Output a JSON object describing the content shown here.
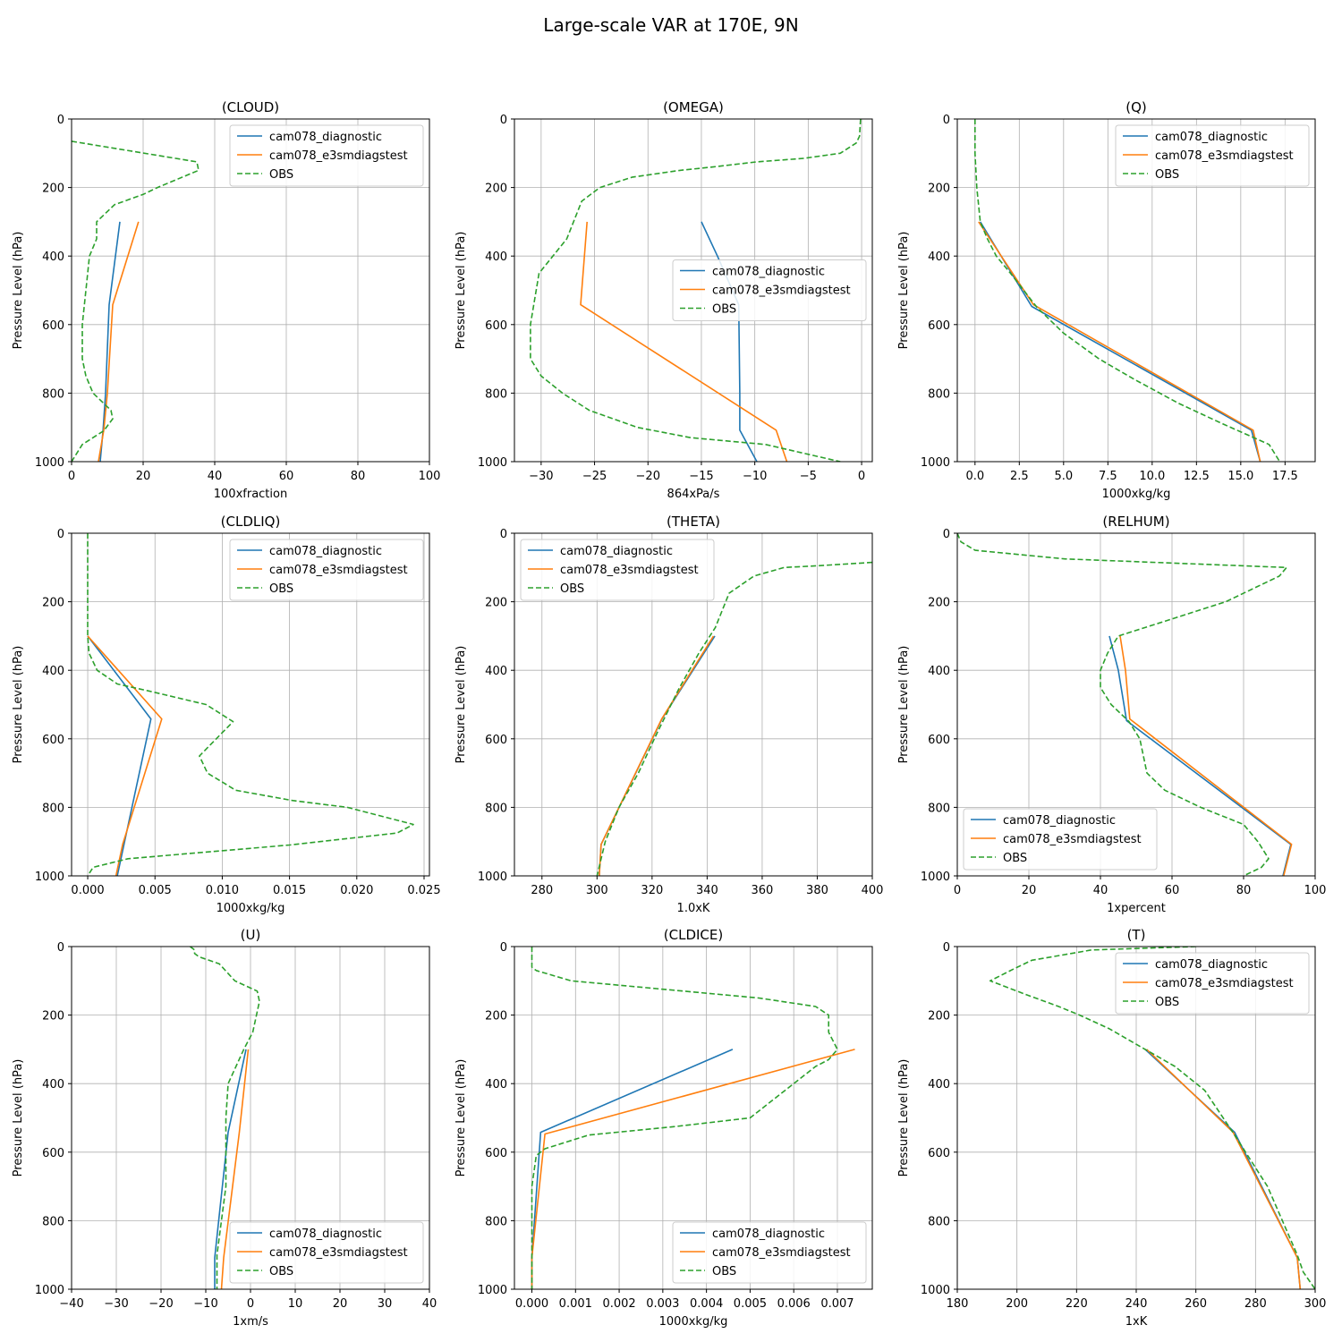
{
  "figure": {
    "title": "Large-scale VAR at 170E, 9N"
  },
  "styles": {
    "cam078_diagnostic": {
      "color": "#1f77b4",
      "dash": ""
    },
    "cam078_e3smdiagstest": {
      "color": "#ff7f0e",
      "dash": ""
    },
    "OBS": {
      "color": "#2ca02c",
      "dash": "6,3"
    }
  },
  "chart_data": [
    {
      "type": "line",
      "title": "(CLOUD)",
      "xlabel": "100xfraction",
      "ylabel": "Pressure Level (hPa)",
      "xlim": [
        0,
        100
      ],
      "ylim": [
        1000,
        0
      ],
      "xticks": [
        0,
        20,
        40,
        60,
        80,
        100
      ],
      "xticklabels": [
        "0",
        "20",
        "40",
        "60",
        "80",
        "100"
      ],
      "yticks": [
        0,
        200,
        400,
        600,
        800,
        1000
      ],
      "yticklabels": [
        "0",
        "200",
        "400",
        "600",
        "800",
        "1000"
      ],
      "grid": true,
      "legend": "upper right",
      "series": [
        {
          "name": "cam078_diagnostic",
          "x": [
            13.5,
            10.5,
            9.5,
            8.8,
            8.0
          ],
          "y": [
            300,
            542,
            800,
            908,
            1000
          ]
        },
        {
          "name": "cam078_e3smdiagstest",
          "x": [
            18.7,
            11.5,
            10,
            9,
            7.5
          ],
          "y": [
            300,
            542,
            800,
            908,
            1000
          ]
        },
        {
          "name": "OBS",
          "x": [
            0,
            35,
            35.5,
            24,
            20,
            12,
            7,
            7,
            5,
            4.5,
            3,
            3,
            4,
            6,
            11,
            11.5,
            9,
            3,
            0
          ],
          "y": [
            65,
            125,
            150,
            200,
            220,
            250,
            300,
            350,
            400,
            450,
            600,
            700,
            750,
            800,
            850,
            875,
            910,
            950,
            1000
          ]
        }
      ]
    },
    {
      "type": "line",
      "title": "(OMEGA)",
      "xlabel": "864xPa/s",
      "ylabel": "Pressure Level (hPa)",
      "xlim": [
        -32.5,
        1.0
      ],
      "ylim": [
        1000,
        0
      ],
      "xticks": [
        -30,
        -25,
        -20,
        -15,
        -10,
        -5,
        0
      ],
      "xticklabels": [
        "−30",
        "−25",
        "−20",
        "−15",
        "−10",
        "−5",
        "0"
      ],
      "yticks": [
        0,
        200,
        400,
        600,
        800,
        1000
      ],
      "yticklabels": [
        "0",
        "200",
        "400",
        "600",
        "800",
        "1000"
      ],
      "grid": true,
      "legend": "center right",
      "series": [
        {
          "name": "cam078_diagnostic",
          "x": [
            -15,
            -13.5,
            -11.5,
            -11.4,
            -11.4,
            -9.8
          ],
          "y": [
            300,
            400,
            542,
            800,
            908,
            1000
          ]
        },
        {
          "name": "cam078_e3smdiagstest",
          "x": [
            -25.7,
            -26.3,
            -8,
            -7
          ],
          "y": [
            300,
            542,
            908,
            1000
          ]
        },
        {
          "name": "OBS",
          "x": [
            -0.1,
            -0.2,
            -0.5,
            -2,
            -5.4,
            -9.8,
            -13.9,
            -17,
            -21.5,
            -24.5,
            -26.2,
            -27.6,
            -30.2,
            -31,
            -31,
            -30,
            -28,
            -25.5,
            -21,
            -16,
            -9,
            -2
          ],
          "y": [
            0,
            50,
            70,
            100,
            115,
            125,
            140,
            150,
            170,
            200,
            240,
            350,
            450,
            600,
            700,
            750,
            800,
            850,
            900,
            930,
            950,
            1000
          ]
        }
      ]
    },
    {
      "type": "line",
      "title": "(Q)",
      "xlabel": "1000xkg/kg",
      "ylabel": "Pressure Level (hPa)",
      "xlim": [
        -1.0,
        19.2
      ],
      "ylim": [
        1000,
        0
      ],
      "xticks": [
        0,
        2.5,
        5,
        7.5,
        10,
        12.5,
        15,
        17.5
      ],
      "xticklabels": [
        "0.0",
        "2.5",
        "5.0",
        "7.5",
        "10.0",
        "12.5",
        "15.0",
        "17.5"
      ],
      "yticks": [
        0,
        200,
        400,
        600,
        800,
        1000
      ],
      "yticklabels": [
        "0",
        "200",
        "400",
        "600",
        "800",
        "1000"
      ],
      "grid": true,
      "legend": "upper right",
      "series": [
        {
          "name": "cam078_diagnostic",
          "x": [
            0.3,
            3.2,
            15.6,
            16.1
          ],
          "y": [
            300,
            547,
            908,
            1000
          ]
        },
        {
          "name": "cam078_e3smdiagstest",
          "x": [
            0.2,
            3.3,
            15.7,
            16.1
          ],
          "y": [
            300,
            542,
            908,
            1000
          ]
        },
        {
          "name": "OBS",
          "x": [
            0.0,
            0.0,
            0.1,
            0.3,
            0.7,
            1.2,
            2.0,
            3.5,
            5.0,
            7.0,
            9.0,
            11.5,
            14.0,
            16.6,
            17.2
          ],
          "y": [
            0,
            100,
            200,
            300,
            350,
            400,
            450,
            550,
            625,
            700,
            760,
            830,
            890,
            950,
            1000
          ]
        }
      ]
    },
    {
      "type": "line",
      "title": "(CLDLIQ)",
      "xlabel": "1000xkg/kg",
      "ylabel": "Pressure Level (hPa)",
      "xlim": [
        -0.0012,
        0.0254
      ],
      "ylim": [
        1000,
        0
      ],
      "xticks": [
        0,
        0.005,
        0.01,
        0.015,
        0.02,
        0.025
      ],
      "xticklabels": [
        "0.000",
        "0.005",
        "0.010",
        "0.015",
        "0.020",
        "0.025"
      ],
      "yticks": [
        0,
        200,
        400,
        600,
        800,
        1000
      ],
      "yticklabels": [
        "0",
        "200",
        "400",
        "600",
        "800",
        "1000"
      ],
      "grid": true,
      "legend": "upper right",
      "series": [
        {
          "name": "cam078_diagnostic",
          "x": [
            0.0,
            0.0047,
            0.0027,
            0.0022
          ],
          "y": [
            300,
            542,
            908,
            1000
          ]
        },
        {
          "name": "cam078_e3smdiagstest",
          "x": [
            0.0,
            0.0055,
            0.0026,
            0.0021
          ],
          "y": [
            300,
            542,
            908,
            1000
          ]
        },
        {
          "name": "OBS",
          "x": [
            0.0,
            0.0,
            0.0,
            0.0001,
            0.0007,
            0.0022,
            0.0045,
            0.0088,
            0.0108,
            0.0083,
            0.0089,
            0.011,
            0.0152,
            0.0193,
            0.0242,
            0.023,
            0.015,
            0.003,
            0.0004,
            0.0
          ],
          "y": [
            0,
            200,
            300,
            350,
            400,
            440,
            460,
            500,
            550,
            650,
            700,
            750,
            780,
            800,
            850,
            875,
            910,
            950,
            975,
            1000
          ]
        }
      ]
    },
    {
      "type": "line",
      "title": "(THETA)",
      "xlabel": "1.0xK",
      "ylabel": "Pressure Level (hPa)",
      "xlim": [
        270,
        400
      ],
      "ylim": [
        1000,
        0
      ],
      "xticks": [
        280,
        300,
        320,
        340,
        360,
        380,
        400
      ],
      "xticklabels": [
        "280",
        "300",
        "320",
        "340",
        "360",
        "380",
        "400"
      ],
      "yticks": [
        0,
        200,
        400,
        600,
        800,
        1000
      ],
      "yticklabels": [
        "0",
        "200",
        "400",
        "600",
        "800",
        "1000"
      ],
      "grid": true,
      "legend": "upper left",
      "series": [
        {
          "name": "cam078_diagnostic",
          "x": [
            342.8,
            323.6,
            301.5,
            300.8
          ],
          "y": [
            300,
            542,
            908,
            1000
          ]
        },
        {
          "name": "cam078_e3smdiagstest",
          "x": [
            342.3,
            323.5,
            301.5,
            300.8
          ],
          "y": [
            300,
            542,
            908,
            1000
          ]
        },
        {
          "name": "OBS",
          "x": [
            400,
            380,
            368,
            357,
            348,
            343,
            337,
            330,
            322,
            315,
            308,
            303,
            300
          ],
          "y": [
            85,
            95,
            100,
            125,
            175,
            275,
            350,
            450,
            580,
            700,
            800,
            900,
            1000
          ]
        }
      ]
    },
    {
      "type": "line",
      "title": "(RELHUM)",
      "xlabel": "1xpercent",
      "ylabel": "Pressure Level (hPa)",
      "xlim": [
        0,
        100
      ],
      "ylim": [
        1000,
        0
      ],
      "xticks": [
        0,
        20,
        40,
        60,
        80,
        100
      ],
      "xticklabels": [
        "0",
        "20",
        "40",
        "60",
        "80",
        "100"
      ],
      "yticks": [
        0,
        200,
        400,
        600,
        800,
        1000
      ],
      "yticklabels": [
        "0",
        "200",
        "400",
        "600",
        "800",
        "1000"
      ],
      "grid": true,
      "legend": "lower left",
      "series": [
        {
          "name": "cam078_diagnostic",
          "x": [
            42.5,
            45,
            47.3,
            93.2,
            91
          ],
          "y": [
            300,
            400,
            547,
            908,
            1000
          ]
        },
        {
          "name": "cam078_e3smdiagstest",
          "x": [
            45.5,
            47,
            48.2,
            93.4,
            91.2
          ],
          "y": [
            300,
            400,
            542,
            908,
            1000
          ]
        },
        {
          "name": "OBS",
          "x": [
            0,
            1,
            5,
            30,
            92,
            90,
            75,
            60,
            45,
            42,
            40,
            40,
            43,
            48,
            51,
            53,
            58,
            68,
            80,
            84,
            87,
            85,
            80
          ],
          "y": [
            0,
            25,
            50,
            75,
            100,
            125,
            200,
            250,
            300,
            350,
            400,
            450,
            500,
            550,
            600,
            700,
            750,
            800,
            850,
            900,
            950,
            975,
            1000
          ]
        }
      ]
    },
    {
      "type": "line",
      "title": "(U)",
      "xlabel": "1xm/s",
      "ylabel": "Pressure Level (hPa)",
      "xlim": [
        -40,
        40
      ],
      "ylim": [
        1000,
        0
      ],
      "xticks": [
        -40,
        -30,
        -20,
        -10,
        0,
        10,
        20,
        30,
        40
      ],
      "xticklabels": [
        "−40",
        "−30",
        "−20",
        "−10",
        "0",
        "10",
        "20",
        "30",
        "40"
      ],
      "yticks": [
        0,
        200,
        400,
        600,
        800,
        1000
      ],
      "yticklabels": [
        "0",
        "200",
        "400",
        "600",
        "800",
        "1000"
      ],
      "grid": true,
      "legend": "lower right",
      "series": [
        {
          "name": "cam078_diagnostic",
          "x": [
            -1,
            -5,
            -8,
            -8
          ],
          "y": [
            300,
            542,
            908,
            1000
          ]
        },
        {
          "name": "cam078_e3smdiagstest",
          "x": [
            -0.5,
            -2.5,
            -6,
            -6.5
          ],
          "y": [
            300,
            542,
            908,
            1000
          ]
        },
        {
          "name": "OBS",
          "x": [
            -13.5,
            -12.5,
            -12.5,
            -11.5,
            -7,
            -3.5,
            1.5,
            2,
            0.5,
            -1.5,
            -5,
            -5.5,
            -5.5,
            -6.5,
            -7.5,
            -7.5
          ],
          "y": [
            0,
            10,
            20,
            30,
            50,
            100,
            130,
            160,
            250,
            300,
            400,
            500,
            700,
            800,
            900,
            1000
          ]
        }
      ]
    },
    {
      "type": "line",
      "title": "(CLDICE)",
      "xlabel": "1000xkg/kg",
      "ylabel": "Pressure Level (hPa)",
      "xlim": [
        -0.0004,
        0.0078
      ],
      "ylim": [
        1000,
        0
      ],
      "xticks": [
        0,
        0.001,
        0.002,
        0.003,
        0.004,
        0.005,
        0.006,
        0.007
      ],
      "xticklabels": [
        "0.000",
        "0.001",
        "0.002",
        "0.003",
        "0.004",
        "0.005",
        "0.006",
        "0.007"
      ],
      "yticks": [
        0,
        200,
        400,
        600,
        800,
        1000
      ],
      "yticklabels": [
        "0",
        "200",
        "400",
        "600",
        "800",
        "1000"
      ],
      "grid": true,
      "legend": "lower right",
      "series": [
        {
          "name": "cam078_diagnostic",
          "x": [
            0.0046,
            0.0002,
            0.0,
            0.0
          ],
          "y": [
            300,
            542,
            908,
            1000
          ]
        },
        {
          "name": "cam078_e3smdiagstest",
          "x": [
            0.0074,
            0.0003,
            0.0,
            0.0
          ],
          "y": [
            300,
            547,
            908,
            1000
          ]
        },
        {
          "name": "OBS",
          "x": [
            0.0,
            0.0,
            0.0001,
            0.0009,
            0.0052,
            0.0065,
            0.0068,
            0.0068,
            0.007,
            0.0068,
            0.0065,
            0.006,
            0.0055,
            0.005,
            0.0033,
            0.0013,
            0.0003,
            0.0001,
            0.0,
            0.0
          ],
          "y": [
            0,
            60,
            70,
            100,
            150,
            175,
            200,
            250,
            300,
            330,
            350,
            400,
            450,
            500,
            525,
            550,
            590,
            610,
            700,
            1000
          ]
        }
      ]
    },
    {
      "type": "line",
      "title": "(T)",
      "xlabel": "1xK",
      "ylabel": "Pressure Level (hPa)",
      "xlim": [
        180,
        300
      ],
      "ylim": [
        1000,
        0
      ],
      "xticks": [
        180,
        200,
        220,
        240,
        260,
        280,
        300
      ],
      "xticklabels": [
        "180",
        "200",
        "220",
        "240",
        "260",
        "280",
        "300"
      ],
      "yticks": [
        0,
        200,
        400,
        600,
        800,
        1000
      ],
      "yticklabels": [
        "0",
        "200",
        "400",
        "600",
        "800",
        "1000"
      ],
      "grid": true,
      "legend": "upper right",
      "series": [
        {
          "name": "cam078_diagnostic",
          "x": [
            243,
            273,
            294,
            295
          ],
          "y": [
            300,
            542,
            908,
            1000
          ]
        },
        {
          "name": "cam078_e3smdiagstest",
          "x": [
            243.5,
            272.5,
            294,
            295
          ],
          "y": [
            300,
            542,
            908,
            1000
          ]
        },
        {
          "name": "OBS",
          "x": [
            260,
            225,
            215,
            205,
            199,
            191,
            203,
            214,
            221,
            231,
            243,
            253,
            263,
            273,
            284,
            294,
            296,
            300
          ],
          "y": [
            0,
            10,
            25,
            40,
            65,
            100,
            140,
            175,
            200,
            240,
            300,
            350,
            420,
            550,
            700,
            900,
            950,
            1000
          ]
        }
      ]
    }
  ]
}
